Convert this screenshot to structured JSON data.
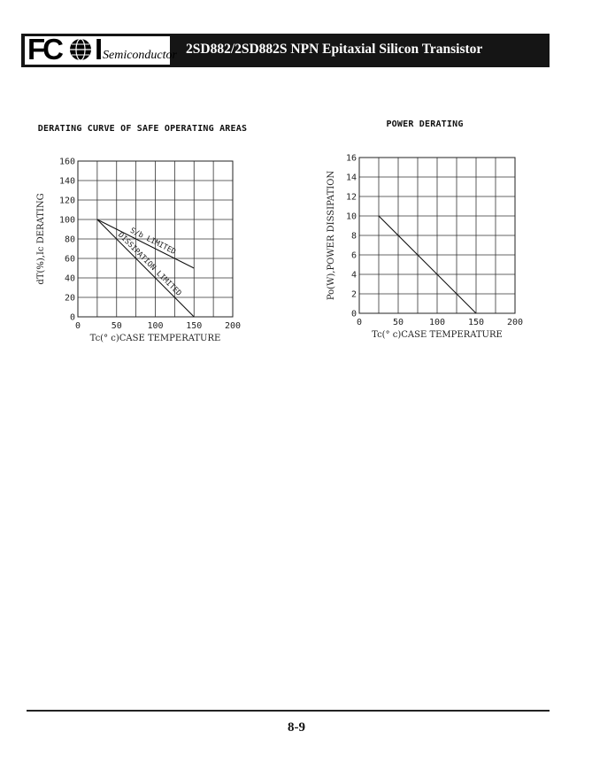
{
  "header": {
    "logo_letters": "FC",
    "logo_letter_i": "I",
    "logo_sub": "Semiconductor",
    "title": "2SD882/2SD882S NPN Epitaxial Silicon Transistor"
  },
  "page_number": "8-9",
  "chart_data": [
    {
      "type": "line",
      "title": "DERATING CURVE OF SAFE OPERATING AREAS",
      "xlabel": "Tc(° c)CASE TEMPERATURE",
      "ylabel": "dT(%),Ic DERATING",
      "xlim": [
        0,
        200
      ],
      "ylim": [
        0,
        160
      ],
      "x_ticks": [
        0,
        50,
        100,
        150,
        200
      ],
      "y_ticks": [
        0,
        20,
        40,
        60,
        80,
        100,
        120,
        140,
        160
      ],
      "grid": true,
      "series": [
        {
          "name": "S/b LIMITED",
          "x": [
            25,
            150
          ],
          "y": [
            100,
            50
          ]
        },
        {
          "name": "DISSIPATION LIMITED",
          "x": [
            25,
            150
          ],
          "y": [
            100,
            0
          ]
        }
      ],
      "annotations": [
        "S/b LIMITED",
        "DISSIPATION LIMITED"
      ]
    },
    {
      "type": "line",
      "title": "POWER DERATING",
      "xlabel": "Tc(° c)CASE TEMPERATURE",
      "ylabel": "Po(W),POWER DISSIPATION",
      "xlim": [
        0,
        200
      ],
      "ylim": [
        0,
        16
      ],
      "x_ticks": [
        0,
        50,
        100,
        150,
        200
      ],
      "y_ticks": [
        0,
        2,
        4,
        6,
        8,
        10,
        12,
        14,
        16
      ],
      "grid": true,
      "series": [
        {
          "x": [
            25,
            150
          ],
          "y": [
            10,
            0
          ]
        }
      ]
    }
  ]
}
